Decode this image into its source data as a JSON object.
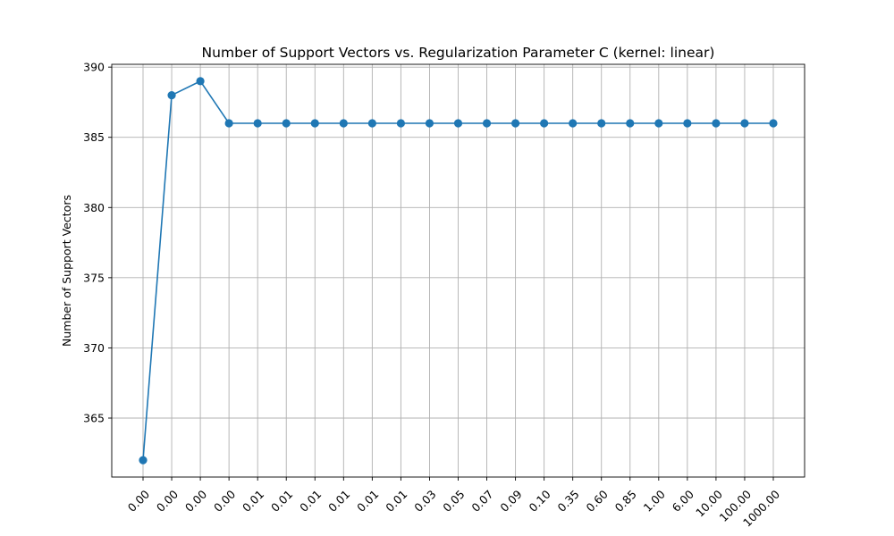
{
  "chart_data": {
    "type": "line",
    "title": "Number of Support Vectors vs. Regularization Parameter C (kernel: linear)",
    "xlabel": "",
    "ylabel": "Number of Support Vectors",
    "categories": [
      "0.00",
      "0.00",
      "0.00",
      "0.00",
      "0.01",
      "0.01",
      "0.01",
      "0.01",
      "0.01",
      "0.01",
      "0.03",
      "0.05",
      "0.07",
      "0.09",
      "0.10",
      "0.35",
      "0.60",
      "0.85",
      "1.00",
      "6.00",
      "10.00",
      "100.00",
      "1000.00"
    ],
    "series": [
      {
        "values": [
          362,
          388,
          389,
          386,
          386,
          386,
          386,
          386,
          386,
          386,
          386,
          386,
          386,
          386,
          386,
          386,
          386,
          386,
          386,
          386,
          386,
          386,
          386
        ],
        "color": "#1f77b4",
        "marker": "circle"
      }
    ],
    "ylim": [
      360.8,
      390.2
    ],
    "yticks": [
      365,
      370,
      375,
      380,
      385,
      390
    ],
    "grid": true,
    "legend": "none"
  }
}
